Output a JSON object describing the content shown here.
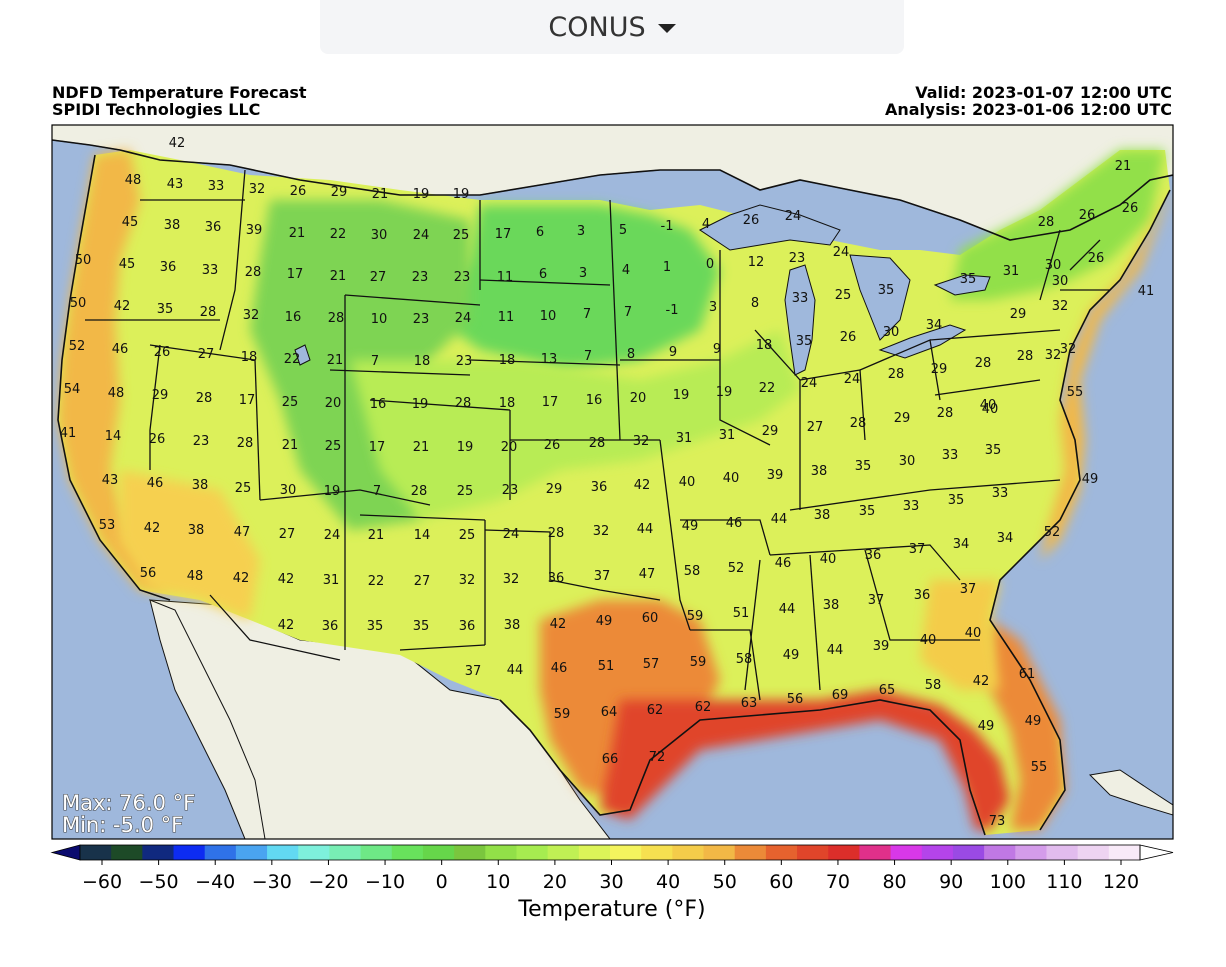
{
  "region_selector": {
    "label": "CONUS"
  },
  "header": {
    "title": "NDFD Temperature Forecast",
    "organization": "SPIDI Technologies LLC",
    "valid": "Valid: 2023-01-07 12:00 UTC",
    "analysis": "Analysis: 2023-01-06 12:00 UTC"
  },
  "stats": {
    "max": "Max: 76.0 °F",
    "min": "Min: -5.0 °F"
  },
  "colorbar": {
    "title": "Temperature (°F)",
    "ticks": [
      "−60",
      "−50",
      "−40",
      "−30",
      "−20",
      "−10",
      "0",
      "10",
      "20",
      "30",
      "40",
      "50",
      "60",
      "70",
      "80",
      "90",
      "100",
      "110",
      "120"
    ],
    "colors": [
      "#0a0a6e",
      "#18324a",
      "#1d4a27",
      "#10297f",
      "#0d2cf2",
      "#2f72e8",
      "#4aa4f0",
      "#62d9f2",
      "#7ef0dc",
      "#78eeb4",
      "#6ee886",
      "#68e25c",
      "#66d64a",
      "#7ac63e",
      "#92e048",
      "#a6ec50",
      "#c0f054",
      "#dcf458",
      "#f4f45e",
      "#f6e050",
      "#f4cc4a",
      "#f2b846",
      "#ec8a38",
      "#e6622e",
      "#e0452a",
      "#dc2e2a",
      "#e0308a",
      "#d838e8",
      "#b444ea",
      "#9a4ae4",
      "#c078e4",
      "#d49cea",
      "#e2bcee",
      "#eed4f2",
      "#f8eaf8",
      "#ffffff"
    ]
  },
  "colors": {
    "ocean": "#9fb8dc",
    "land": "#efefe3",
    "lake": "#9fb8dc"
  },
  "map_points": [
    {
      "v": "42"
    },
    {
      "v": "48"
    },
    {
      "v": "43"
    },
    {
      "v": "33"
    },
    {
      "v": "32"
    },
    {
      "v": "26"
    },
    {
      "v": "29"
    },
    {
      "v": "21"
    },
    {
      "v": "19"
    },
    {
      "v": "19"
    },
    {
      "v": "45"
    },
    {
      "v": "38"
    },
    {
      "v": "36"
    },
    {
      "v": "39"
    },
    {
      "v": "21"
    },
    {
      "v": "22"
    },
    {
      "v": "30"
    },
    {
      "v": "24"
    },
    {
      "v": "25"
    },
    {
      "v": "17"
    },
    {
      "v": "6"
    },
    {
      "v": "3"
    },
    {
      "v": "5"
    },
    {
      "v": "-1"
    },
    {
      "v": "4"
    },
    {
      "v": "26"
    },
    {
      "v": "24"
    },
    {
      "v": "21"
    },
    {
      "v": "28"
    },
    {
      "v": "26"
    },
    {
      "v": "26"
    },
    {
      "v": "50"
    },
    {
      "v": "45"
    },
    {
      "v": "36"
    },
    {
      "v": "33"
    },
    {
      "v": "28"
    },
    {
      "v": "17"
    },
    {
      "v": "21"
    },
    {
      "v": "27"
    },
    {
      "v": "23"
    },
    {
      "v": "23"
    },
    {
      "v": "11"
    },
    {
      "v": "6"
    },
    {
      "v": "3"
    },
    {
      "v": "4"
    },
    {
      "v": "1"
    },
    {
      "v": "0"
    },
    {
      "v": "12"
    },
    {
      "v": "23"
    },
    {
      "v": "24"
    },
    {
      "v": "35"
    },
    {
      "v": "31"
    },
    {
      "v": "30"
    },
    {
      "v": "26"
    },
    {
      "v": "50"
    },
    {
      "v": "42"
    },
    {
      "v": "35"
    },
    {
      "v": "28"
    },
    {
      "v": "32"
    },
    {
      "v": "16"
    },
    {
      "v": "28"
    },
    {
      "v": "10"
    },
    {
      "v": "23"
    },
    {
      "v": "24"
    },
    {
      "v": "11"
    },
    {
      "v": "10"
    },
    {
      "v": "7"
    },
    {
      "v": "7"
    },
    {
      "v": "-1"
    },
    {
      "v": "3"
    },
    {
      "v": "8"
    },
    {
      "v": "33"
    },
    {
      "v": "25"
    },
    {
      "v": "35"
    },
    {
      "v": "30"
    },
    {
      "v": "29"
    },
    {
      "v": "32"
    },
    {
      "v": "41"
    },
    {
      "v": "52"
    },
    {
      "v": "46"
    },
    {
      "v": "26"
    },
    {
      "v": "27"
    },
    {
      "v": "18"
    },
    {
      "v": "22"
    },
    {
      "v": "21"
    },
    {
      "v": "7"
    },
    {
      "v": "18"
    },
    {
      "v": "23"
    },
    {
      "v": "18"
    },
    {
      "v": "13"
    },
    {
      "v": "7"
    },
    {
      "v": "8"
    },
    {
      "v": "9"
    },
    {
      "v": "9"
    },
    {
      "v": "18"
    },
    {
      "v": "35"
    },
    {
      "v": "26"
    },
    {
      "v": "30"
    },
    {
      "v": "34"
    },
    {
      "v": "32"
    },
    {
      "v": "28"
    },
    {
      "v": "28"
    },
    {
      "v": "32"
    },
    {
      "v": "54"
    },
    {
      "v": "48"
    },
    {
      "v": "29"
    },
    {
      "v": "28"
    },
    {
      "v": "17"
    },
    {
      "v": "25"
    },
    {
      "v": "20"
    },
    {
      "v": "16"
    },
    {
      "v": "19"
    },
    {
      "v": "28"
    },
    {
      "v": "18"
    },
    {
      "v": "17"
    },
    {
      "v": "16"
    },
    {
      "v": "20"
    },
    {
      "v": "19"
    },
    {
      "v": "19"
    },
    {
      "v": "22"
    },
    {
      "v": "24"
    },
    {
      "v": "24"
    },
    {
      "v": "28"
    },
    {
      "v": "29"
    },
    {
      "v": "40"
    },
    {
      "v": "55"
    },
    {
      "v": "41"
    },
    {
      "v": "14"
    },
    {
      "v": "26"
    },
    {
      "v": "23"
    },
    {
      "v": "28"
    },
    {
      "v": "21"
    },
    {
      "v": "25"
    },
    {
      "v": "17"
    },
    {
      "v": "21"
    },
    {
      "v": "19"
    },
    {
      "v": "20"
    },
    {
      "v": "26"
    },
    {
      "v": "28"
    },
    {
      "v": "32"
    },
    {
      "v": "31"
    },
    {
      "v": "31"
    },
    {
      "v": "29"
    },
    {
      "v": "27"
    },
    {
      "v": "28"
    },
    {
      "v": "29"
    },
    {
      "v": "28"
    },
    {
      "v": "40"
    },
    {
      "v": "43"
    },
    {
      "v": "46"
    },
    {
      "v": "38"
    },
    {
      "v": "25"
    },
    {
      "v": "30"
    },
    {
      "v": "19"
    },
    {
      "v": "7"
    },
    {
      "v": "28"
    },
    {
      "v": "25"
    },
    {
      "v": "23"
    },
    {
      "v": "29"
    },
    {
      "v": "36"
    },
    {
      "v": "42"
    },
    {
      "v": "40"
    },
    {
      "v": "40"
    },
    {
      "v": "39"
    },
    {
      "v": "38"
    },
    {
      "v": "35"
    },
    {
      "v": "30"
    },
    {
      "v": "33"
    },
    {
      "v": "35"
    },
    {
      "v": "49"
    },
    {
      "v": "53"
    },
    {
      "v": "42"
    },
    {
      "v": "38"
    },
    {
      "v": "47"
    },
    {
      "v": "27"
    },
    {
      "v": "24"
    },
    {
      "v": "21"
    },
    {
      "v": "14"
    },
    {
      "v": "25"
    },
    {
      "v": "24"
    },
    {
      "v": "28"
    },
    {
      "v": "32"
    },
    {
      "v": "44"
    },
    {
      "v": "49"
    },
    {
      "v": "46"
    },
    {
      "v": "44"
    },
    {
      "v": "38"
    },
    {
      "v": "35"
    },
    {
      "v": "33"
    },
    {
      "v": "35"
    },
    {
      "v": "33"
    },
    {
      "v": "52"
    },
    {
      "v": "56"
    },
    {
      "v": "48"
    },
    {
      "v": "42"
    },
    {
      "v": "42"
    },
    {
      "v": "31"
    },
    {
      "v": "22"
    },
    {
      "v": "27"
    },
    {
      "v": "32"
    },
    {
      "v": "32"
    },
    {
      "v": "36"
    },
    {
      "v": "37"
    },
    {
      "v": "47"
    },
    {
      "v": "58"
    },
    {
      "v": "52"
    },
    {
      "v": "46"
    },
    {
      "v": "40"
    },
    {
      "v": "36"
    },
    {
      "v": "37"
    },
    {
      "v": "34"
    },
    {
      "v": "34"
    },
    {
      "v": "42"
    },
    {
      "v": "36"
    },
    {
      "v": "35"
    },
    {
      "v": "35"
    },
    {
      "v": "36"
    },
    {
      "v": "38"
    },
    {
      "v": "42"
    },
    {
      "v": "49"
    },
    {
      "v": "60"
    },
    {
      "v": "59"
    },
    {
      "v": "51"
    },
    {
      "v": "44"
    },
    {
      "v": "38"
    },
    {
      "v": "37"
    },
    {
      "v": "36"
    },
    {
      "v": "37"
    },
    {
      "v": "37"
    },
    {
      "v": "44"
    },
    {
      "v": "46"
    },
    {
      "v": "51"
    },
    {
      "v": "57"
    },
    {
      "v": "59"
    },
    {
      "v": "58"
    },
    {
      "v": "49"
    },
    {
      "v": "44"
    },
    {
      "v": "39"
    },
    {
      "v": "40"
    },
    {
      "v": "40"
    },
    {
      "v": "42"
    },
    {
      "v": "61"
    },
    {
      "v": "59"
    },
    {
      "v": "64"
    },
    {
      "v": "62"
    },
    {
      "v": "62"
    },
    {
      "v": "63"
    },
    {
      "v": "56"
    },
    {
      "v": "69"
    },
    {
      "v": "65"
    },
    {
      "v": "58"
    },
    {
      "v": "49"
    },
    {
      "v": "49"
    },
    {
      "v": "66"
    },
    {
      "v": "72"
    },
    {
      "v": "55"
    },
    {
      "v": "73"
    }
  ]
}
